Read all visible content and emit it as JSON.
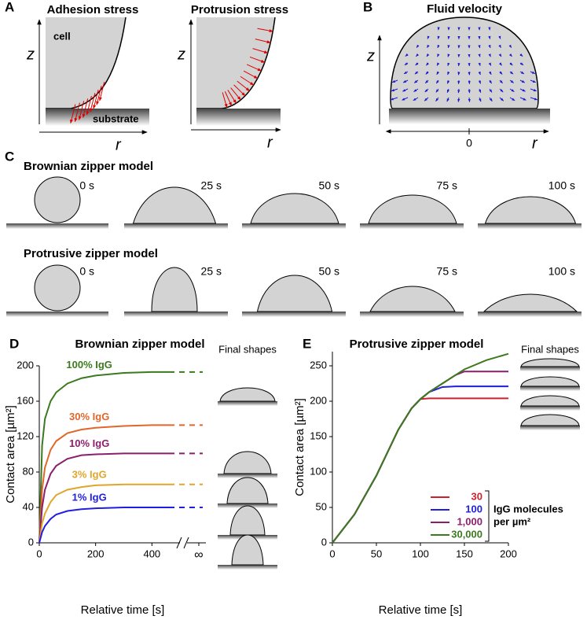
{
  "panel_a": {
    "label": "A",
    "left_title": "Adhesion stress",
    "right_title": "Protrusion stress",
    "cell": "cell",
    "substrate": "substrate",
    "z": "z",
    "r": "r"
  },
  "panel_b": {
    "label": "B",
    "title": "Fluid velocity",
    "origin": "0",
    "z": "z",
    "r": "r"
  },
  "panel_c": {
    "label": "C",
    "rows": [
      {
        "title": "Brownian zipper model",
        "times": [
          "0 s",
          "25 s",
          "50 s",
          "75 s",
          "100 s"
        ]
      },
      {
        "title": "Protrusive zipper model",
        "times": [
          "0 s",
          "25 s",
          "50 s",
          "75 s",
          "100 s"
        ]
      }
    ]
  },
  "chart_data": [
    {
      "panel_label": "D",
      "type": "line",
      "title": "Brownian zipper model",
      "x_label": "Relative time  [s]",
      "y_label": "Contact area  [µm²]",
      "x": [
        0,
        10,
        20,
        40,
        60,
        100,
        150,
        200,
        300,
        400,
        480
      ],
      "xlim": [
        0,
        480
      ],
      "xticks": [
        0,
        200,
        400
      ],
      "infinity_label": "∞",
      "ylim": [
        0,
        200
      ],
      "yticks": [
        0,
        40,
        80,
        120,
        160,
        200
      ],
      "series": [
        {
          "name": "100% IgG",
          "color": "#3b7a1e",
          "values": [
            0,
            110,
            140,
            160,
            170,
            180,
            186,
            189,
            192,
            193,
            193
          ]
        },
        {
          "name": "30% IgG",
          "color": "#e0662a",
          "values": [
            0,
            60,
            85,
            105,
            115,
            124,
            128,
            130,
            132,
            133,
            133
          ]
        },
        {
          "name": "10% IgG",
          "color": "#8b1f6e",
          "values": [
            0,
            40,
            60,
            78,
            87,
            95,
            99,
            100,
            101,
            101,
            101
          ]
        },
        {
          "name": "3% IgG",
          "color": "#e0a62a",
          "values": [
            0,
            22,
            33,
            46,
            54,
            60,
            63,
            65,
            66,
            66,
            66
          ]
        },
        {
          "name": "1% IgG",
          "color": "#1f1fe0",
          "values": [
            0,
            12,
            19,
            27,
            32,
            36,
            38,
            39,
            40,
            40,
            40
          ]
        }
      ],
      "final_shapes_label": "Final shapes"
    },
    {
      "panel_label": "E",
      "type": "line",
      "title": "Protrusive zipper model",
      "x_label": "Relative time [s]",
      "y_label": "Contact area [µm²]",
      "x": [
        0,
        25,
        50,
        75,
        90,
        100,
        110,
        125,
        140,
        150,
        175,
        200
      ],
      "xlim": [
        0,
        200
      ],
      "xticks": [
        0,
        50,
        100,
        150,
        200
      ],
      "ylim": [
        0,
        270
      ],
      "yticks": [
        0,
        50,
        100,
        150,
        200,
        250
      ],
      "series": [
        {
          "name": "30",
          "color": "#d0202a",
          "values": [
            0,
            40,
            95,
            160,
            190,
            203,
            204,
            204,
            204,
            204,
            204,
            204
          ]
        },
        {
          "name": "100",
          "color": "#1f1fe0",
          "values": [
            0,
            40,
            95,
            160,
            190,
            203,
            213,
            220,
            221,
            221,
            221,
            221
          ]
        },
        {
          "name": "1,000",
          "color": "#8b1f6e",
          "values": [
            0,
            40,
            95,
            160,
            190,
            203,
            213,
            225,
            237,
            242,
            242,
            242
          ]
        },
        {
          "name": "30,000",
          "color": "#3b7a1e",
          "values": [
            0,
            40,
            95,
            160,
            190,
            203,
            213,
            225,
            237,
            245,
            258,
            267
          ]
        }
      ],
      "legend_title": [
        "IgG molecules",
        "per µm²"
      ],
      "legend_position": "lower right",
      "final_shapes_label": "Final shapes"
    }
  ]
}
